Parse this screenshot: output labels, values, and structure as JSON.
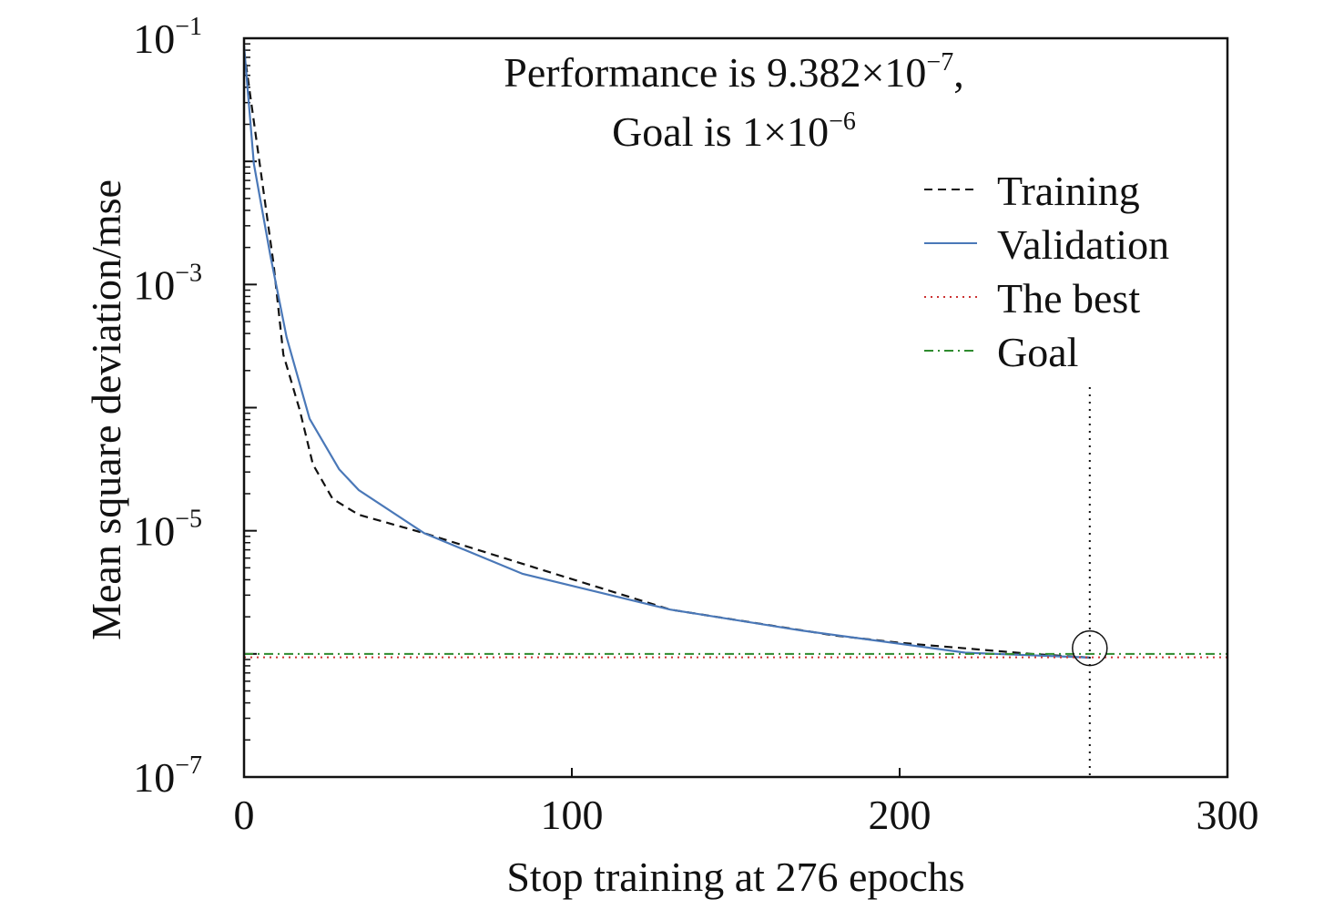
{
  "chart_data": {
    "type": "line",
    "title_line1": "Performance is 9.382×10",
    "title_line1_exp": "−7",
    "title_line1_end": ",",
    "title_line2": "Goal is 1×10",
    "title_line2_exp": "−6",
    "xlabel": "Stop training at 276 epochs",
    "ylabel": "Mean square deviation/mse",
    "xlim": [
      0,
      300
    ],
    "ylim": [
      1e-07,
      0.1
    ],
    "yscale": "log",
    "xticks": [
      "0",
      "100",
      "200",
      "300"
    ],
    "xtick_values": [
      0,
      100,
      200,
      300
    ],
    "yticks": [
      {
        "base": "10",
        "exp": "−1",
        "value": -1
      },
      {
        "base": "10",
        "exp": "−3",
        "value": -3
      },
      {
        "base": "10",
        "exp": "−5",
        "value": -5
      },
      {
        "base": "10",
        "exp": "−7",
        "value": -7
      }
    ],
    "legend_position": "top-right",
    "series": [
      {
        "name": "Training",
        "color": "#111111",
        "style": "dashed",
        "x": [
          0,
          9,
          12,
          17,
          21,
          27,
          35,
          55,
          90,
          130,
          180,
          200,
          240,
          258
        ],
        "log10_y": [
          -1.1,
          -2.83,
          -3.57,
          -4.02,
          -4.46,
          -4.74,
          -4.87,
          -5.02,
          -5.31,
          -5.64,
          -5.85,
          -5.91,
          -6.0,
          -6.03
        ]
      },
      {
        "name": "Validation",
        "color": "#4a78b8",
        "style": "solid",
        "x": [
          0,
          3,
          8,
          13,
          20,
          29,
          35,
          55,
          85,
          130,
          170,
          220,
          258
        ],
        "log10_y": [
          -1.06,
          -2.02,
          -2.76,
          -3.43,
          -4.09,
          -4.5,
          -4.67,
          -5.02,
          -5.35,
          -5.64,
          -5.81,
          -5.99,
          -6.03
        ]
      },
      {
        "name": "The best",
        "color": "#cc3333",
        "style": "dotted",
        "y": 9.382e-07
      },
      {
        "name": "Goal",
        "color": "#2e8b2e",
        "style": "dashdot",
        "y": 1e-06
      }
    ],
    "best_epoch": 258
  }
}
